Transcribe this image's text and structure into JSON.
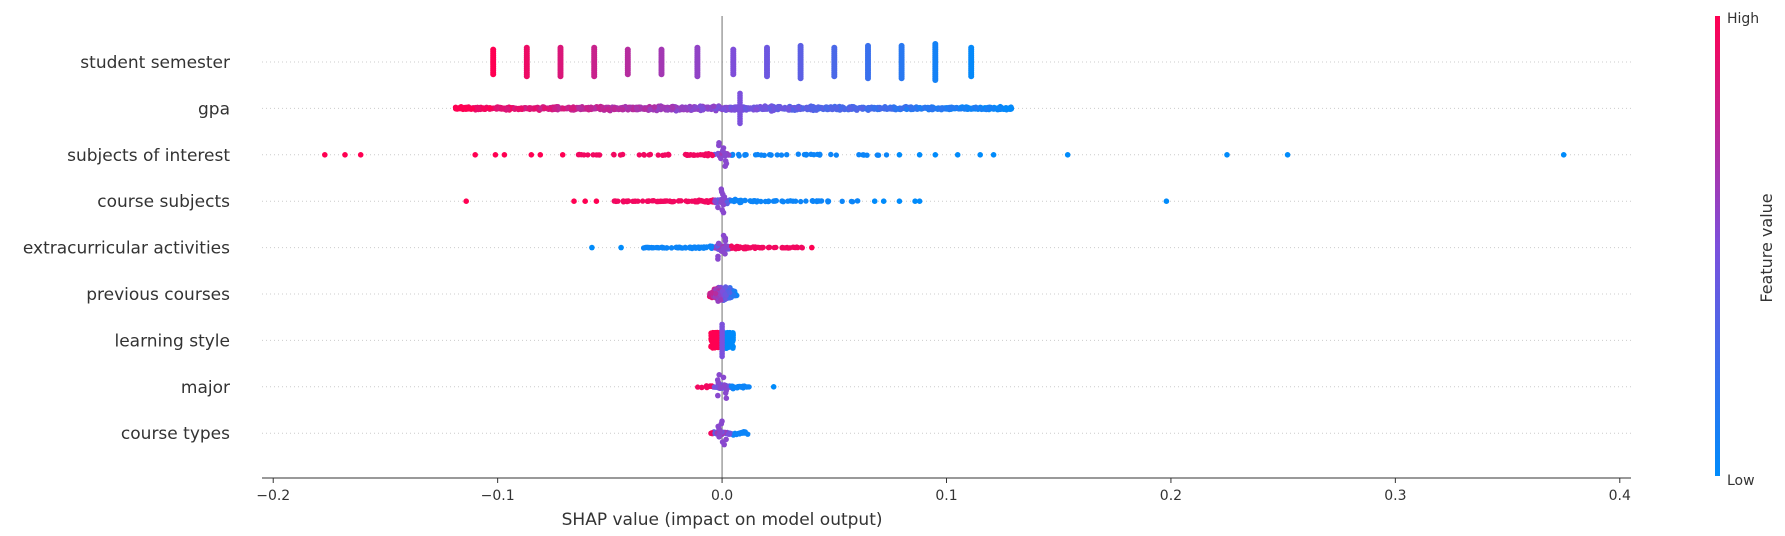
{
  "chart_data": {
    "type": "scatter",
    "subtype": "shap-beeswarm",
    "xlabel": "SHAP value (impact on model output)",
    "ylabel": "",
    "xlim": [
      -0.205,
      0.405
    ],
    "xticks": [
      -0.2,
      -0.1,
      0.0,
      0.1,
      0.2,
      0.3,
      0.4
    ],
    "xtick_labels": [
      "−0.2",
      "−0.1",
      "0.0",
      "0.1",
      "0.2",
      "0.3",
      "0.4"
    ],
    "grid": false,
    "zero_line": true,
    "colorbar": {
      "title": "Feature value",
      "high_label": "High",
      "low_label": "Low",
      "high_color": "#ff0052",
      "low_color": "#008bfb"
    },
    "features": [
      {
        "name": "student semester",
        "clusters": [
          {
            "x": -0.102,
            "fv": 1.0,
            "n": 14,
            "shape": "bar"
          },
          {
            "x": -0.087,
            "fv": 0.93,
            "n": 16,
            "shape": "bar"
          },
          {
            "x": -0.072,
            "fv": 0.86,
            "n": 16,
            "shape": "bar"
          },
          {
            "x": -0.057,
            "fv": 0.79,
            "n": 16,
            "shape": "bar"
          },
          {
            "x": -0.042,
            "fv": 0.72,
            "n": 14,
            "shape": "bar"
          },
          {
            "x": -0.027,
            "fv": 0.65,
            "n": 14,
            "shape": "bar"
          },
          {
            "x": -0.011,
            "fv": 0.58,
            "n": 16,
            "shape": "bar"
          },
          {
            "x": 0.005,
            "fv": 0.51,
            "n": 14,
            "shape": "bar"
          },
          {
            "x": 0.02,
            "fv": 0.44,
            "n": 16,
            "shape": "bar"
          },
          {
            "x": 0.035,
            "fv": 0.37,
            "n": 18,
            "shape": "bar"
          },
          {
            "x": 0.05,
            "fv": 0.3,
            "n": 16,
            "shape": "bar"
          },
          {
            "x": 0.065,
            "fv": 0.23,
            "n": 18,
            "shape": "bar"
          },
          {
            "x": 0.08,
            "fv": 0.16,
            "n": 18,
            "shape": "bar"
          },
          {
            "x": 0.095,
            "fv": 0.08,
            "n": 20,
            "shape": "bar"
          },
          {
            "x": 0.111,
            "fv": 0.02,
            "n": 16,
            "shape": "bar"
          }
        ]
      },
      {
        "name": "gpa",
        "range": [
          -0.119,
          0.129
        ],
        "spike": {
          "x": 0.008,
          "fv": 0.5,
          "height": 15
        },
        "density": "band"
      },
      {
        "name": "subjects of interest",
        "outliers": [
          {
            "x": -0.177,
            "fv": 1.0
          },
          {
            "x": -0.168,
            "fv": 1.0
          },
          {
            "x": -0.161,
            "fv": 1.0
          },
          {
            "x": -0.11,
            "fv": 1.0
          },
          {
            "x": -0.101,
            "fv": 1.0
          },
          {
            "x": -0.097,
            "fv": 1.0
          },
          {
            "x": -0.085,
            "fv": 1.0
          },
          {
            "x": -0.081,
            "fv": 1.0
          },
          {
            "x": -0.071,
            "fv": 1.0
          },
          {
            "x": 0.079,
            "fv": 0.0
          },
          {
            "x": 0.088,
            "fv": 0.0
          },
          {
            "x": 0.095,
            "fv": 0.0
          },
          {
            "x": 0.105,
            "fv": 0.0
          },
          {
            "x": 0.115,
            "fv": 0.0
          },
          {
            "x": 0.121,
            "fv": 0.0
          },
          {
            "x": 0.154,
            "fv": 0.0
          },
          {
            "x": 0.225,
            "fv": 0.0
          },
          {
            "x": 0.252,
            "fv": 0.0
          },
          {
            "x": 0.375,
            "fv": 0.0
          }
        ],
        "core_range": [
          -0.065,
          0.075
        ],
        "center_width": 0.003,
        "density": "sparse"
      },
      {
        "name": "course subjects",
        "outliers": [
          {
            "x": -0.114,
            "fv": 1.0
          },
          {
            "x": -0.066,
            "fv": 1.0
          },
          {
            "x": -0.061,
            "fv": 1.0
          },
          {
            "x": -0.056,
            "fv": 1.0
          },
          {
            "x": 0.068,
            "fv": 0.0
          },
          {
            "x": 0.072,
            "fv": 0.0
          },
          {
            "x": 0.079,
            "fv": 0.0
          },
          {
            "x": 0.086,
            "fv": 0.0
          },
          {
            "x": 0.088,
            "fv": 0.0
          },
          {
            "x": 0.198,
            "fv": 0.0
          }
        ],
        "core_range": [
          -0.049,
          0.061
        ],
        "center_width": 0.003,
        "density": "medium"
      },
      {
        "name": "extracurricular activities",
        "outliers": [
          {
            "x": -0.058,
            "fv": 0.0
          },
          {
            "x": -0.045,
            "fv": 0.0
          },
          {
            "x": 0.04,
            "fv": 1.0
          }
        ],
        "core_range": [
          -0.035,
          0.036
        ],
        "inverted": true,
        "density": "medium"
      },
      {
        "name": "previous courses",
        "core_range": [
          -0.017,
          0.017
        ],
        "density": "swarm"
      },
      {
        "name": "learning style",
        "blocks": [
          {
            "x0": -0.005,
            "x1": -0.001,
            "fv": 1.0
          },
          {
            "x0": 0.001,
            "x1": 0.005,
            "fv": 0.0
          }
        ],
        "spike": {
          "x": 0.0,
          "fv": 0.5,
          "height": 16
        }
      },
      {
        "name": "major",
        "outliers": [
          {
            "x": 0.023,
            "fv": 0.0
          }
        ],
        "core_range": [
          -0.012,
          0.013
        ],
        "density": "small"
      },
      {
        "name": "course types",
        "core_range": [
          -0.005,
          0.012
        ],
        "density": "small"
      }
    ]
  }
}
